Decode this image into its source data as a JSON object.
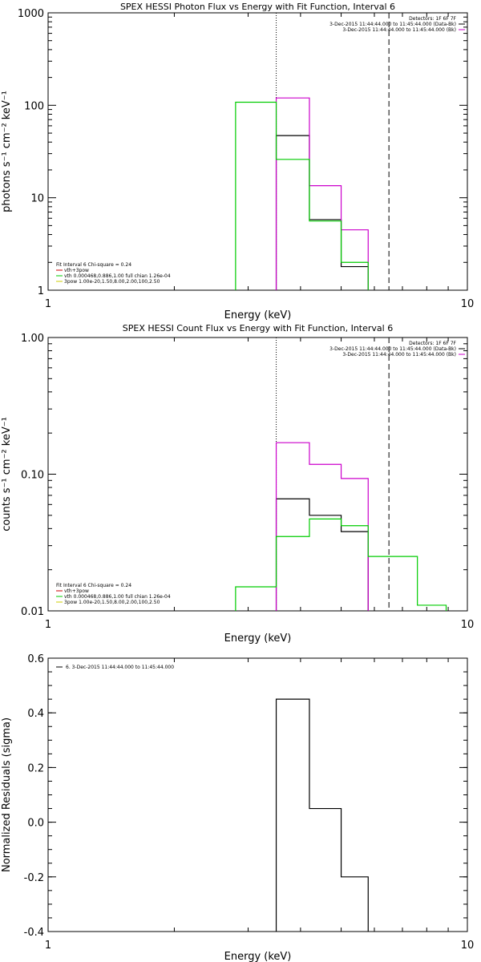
{
  "chart_data": [
    {
      "type": "line",
      "title": "SPEX HESSI Photon Flux vs Energy with Fit Function, Interval 6",
      "xlabel": "Energy (keV)",
      "ylabel": "photons s⁻¹ cm⁻² keV⁻¹",
      "xscale": "log",
      "yscale": "log",
      "xlim": [
        1,
        10
      ],
      "ylim": [
        1,
        1000
      ],
      "xticks": [
        {
          "value": 1,
          "label": "1"
        },
        {
          "value": 10,
          "label": "10"
        }
      ],
      "yticks": [
        {
          "value": 1,
          "label": "1"
        },
        {
          "value": 10,
          "label": "10"
        },
        {
          "value": 100,
          "label": "100"
        },
        {
          "value": 1000,
          "label": "1000"
        }
      ],
      "vlines": [
        {
          "x": 3.5,
          "style": "dotted"
        },
        {
          "x": 6.5,
          "style": "dashed"
        }
      ],
      "legend_top": {
        "position": "top-right",
        "entries": [
          {
            "text": "Detectors: 1F 6F 7F",
            "color": ""
          },
          {
            "text": "3-Dec-2015 11:44:44.000 to 11:45:44.000 (Data-Bk)",
            "color": "#000000"
          },
          {
            "text": "3-Dec-2015 11:44:44.000 to 11:45:44.000 (Bk)",
            "color": "#cc00cc"
          }
        ]
      },
      "legend_bottom": {
        "position": "bottom-left",
        "entries": [
          {
            "text": "Fit Interval 6   Chi-square = 0.24",
            "color": ""
          },
          {
            "text": "vth+3pow",
            "color": "#cc0000"
          },
          {
            "text": "vth 0.000468,0.886,1.00  full chian 1.26e-04",
            "color": "#00cc00"
          },
          {
            "text": "3pow 1.00e-20,1.50,8.00,2.00,100,2.50",
            "color": "#cccc00"
          }
        ]
      },
      "series": [
        {
          "name": "Data-Bk",
          "color": "#000000",
          "style": "hist",
          "steps": [
            [
              3.5,
              4.2,
              47
            ],
            [
              4.2,
              5.0,
              5.8
            ],
            [
              5.0,
              5.8,
              1.8
            ]
          ]
        },
        {
          "name": "Bk",
          "color": "#cc00cc",
          "style": "hist",
          "steps": [
            [
              3.5,
              4.2,
              120
            ],
            [
              4.2,
              5.0,
              13.5
            ],
            [
              5.0,
              5.8,
              4.5
            ]
          ]
        },
        {
          "name": "vth",
          "color": "#00cc00",
          "style": "hist",
          "steps": [
            [
              2.8,
              3.5,
              108
            ],
            [
              3.5,
              4.2,
              26
            ],
            [
              4.2,
              5.0,
              5.6
            ],
            [
              5.0,
              5.8,
              2.0
            ]
          ]
        }
      ]
    },
    {
      "type": "line",
      "title": "SPEX HESSI Count Flux vs Energy with Fit Function, Interval 6",
      "xlabel": "Energy (keV)",
      "ylabel": "counts s⁻¹ cm⁻² keV⁻¹",
      "xscale": "log",
      "yscale": "log",
      "xlim": [
        1,
        10
      ],
      "ylim": [
        0.01,
        1
      ],
      "xticks": [
        {
          "value": 1,
          "label": "1"
        },
        {
          "value": 10,
          "label": "10"
        }
      ],
      "yticks": [
        {
          "value": 0.01,
          "label": "0.01"
        },
        {
          "value": 0.1,
          "label": "0.10"
        },
        {
          "value": 1,
          "label": "1.00"
        }
      ],
      "vlines": [
        {
          "x": 3.5,
          "style": "dotted"
        },
        {
          "x": 6.5,
          "style": "dashed"
        }
      ],
      "legend_top": {
        "position": "top-right",
        "entries": [
          {
            "text": "Detectors: 1F 6F 7F",
            "color": ""
          },
          {
            "text": "3-Dec-2015 11:44:44.000 to 11:45:44.000 (Data-Bk)",
            "color": "#000000"
          },
          {
            "text": "3-Dec-2015 11:44:44.000 to 11:45:44.000 (Bk)",
            "color": "#cc00cc"
          }
        ]
      },
      "legend_bottom": {
        "position": "bottom-left",
        "entries": [
          {
            "text": "Fit Interval 6   Chi-square = 0.24",
            "color": ""
          },
          {
            "text": "vth+3pow",
            "color": "#cc0000"
          },
          {
            "text": "vth 0.000468,0.886,1.00  full chian 1.26e-04",
            "color": "#00cc00"
          },
          {
            "text": "3pow 1.00e-20,1.50,8.00,2.00,100,2.50",
            "color": "#cccc00"
          }
        ]
      },
      "series": [
        {
          "name": "Data-Bk",
          "color": "#000000",
          "style": "hist",
          "steps": [
            [
              3.5,
              4.2,
              0.066
            ],
            [
              4.2,
              5.0,
              0.05
            ],
            [
              5.0,
              5.8,
              0.038
            ]
          ]
        },
        {
          "name": "Bk",
          "color": "#cc00cc",
          "style": "hist",
          "steps": [
            [
              3.5,
              4.2,
              0.17
            ],
            [
              4.2,
              5.0,
              0.118
            ],
            [
              5.0,
              5.8,
              0.093
            ]
          ]
        },
        {
          "name": "vth",
          "color": "#00cc00",
          "style": "hist",
          "steps": [
            [
              2.8,
              3.5,
              0.015
            ],
            [
              3.5,
              4.2,
              0.035
            ],
            [
              4.2,
              5.0,
              0.047
            ],
            [
              5.0,
              5.8,
              0.042
            ],
            [
              5.8,
              6.5,
              0.025
            ],
            [
              6.5,
              7.6,
              0.025
            ],
            [
              7.6,
              8.9,
              0.011
            ]
          ]
        }
      ]
    },
    {
      "type": "line",
      "title": "",
      "xlabel": "Energy (keV)",
      "ylabel": "Normalized Residuals (sigma)",
      "xscale": "log",
      "yscale": "linear",
      "xlim": [
        1,
        10
      ],
      "ylim": [
        -0.4,
        0.6
      ],
      "xticks": [
        {
          "value": 1,
          "label": "1"
        },
        {
          "value": 10,
          "label": "10"
        }
      ],
      "yticks": [
        {
          "value": -0.4,
          "label": "-0.4"
        },
        {
          "value": -0.2,
          "label": "-0.2"
        },
        {
          "value": 0,
          "label": "0.0"
        },
        {
          "value": 0.2,
          "label": "0.2"
        },
        {
          "value": 0.4,
          "label": "0.4"
        },
        {
          "value": 0.6,
          "label": "0.6"
        }
      ],
      "vlines": [],
      "legend_top": {
        "position": "top-left",
        "entries": [
          {
            "text": "6. 3-Dec-2015 11:44:44.000 to 11:45:44.000",
            "color": "#000000"
          }
        ]
      },
      "legend_bottom": {
        "position": "bottom-left",
        "entries": []
      },
      "series": [
        {
          "name": "6. 3-Dec-2015 11:44:44.000 to 11:45:44.000",
          "color": "#000000",
          "style": "hist",
          "steps": [
            [
              3.5,
              4.2,
              0.45
            ],
            [
              4.2,
              5.0,
              0.05
            ],
            [
              5.0,
              5.8,
              -0.2
            ]
          ],
          "close_to": -0.4
        }
      ]
    }
  ]
}
